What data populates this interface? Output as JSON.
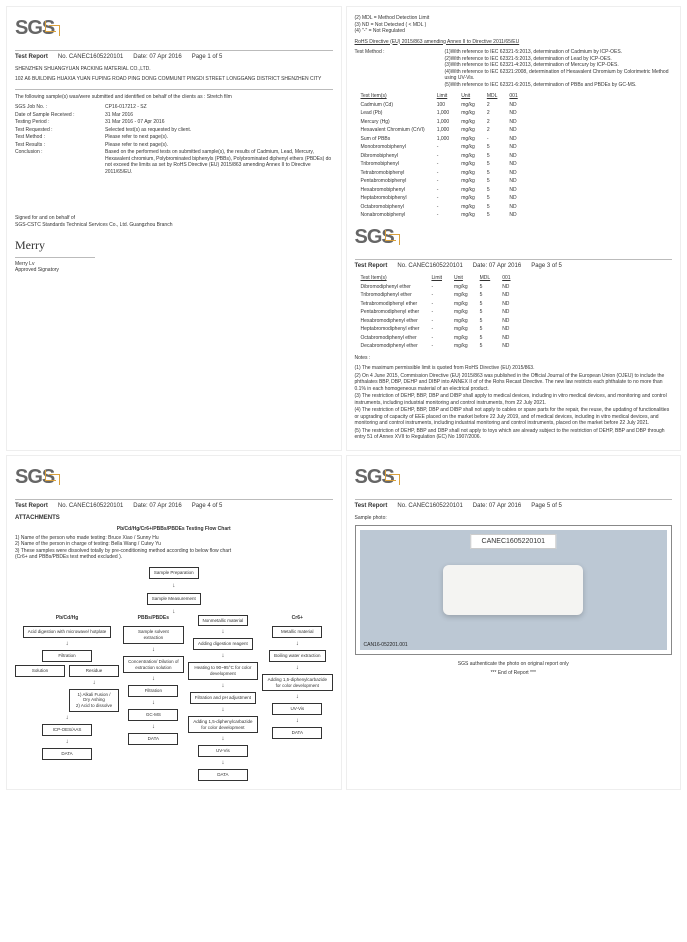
{
  "logo_text": "SGS",
  "report_label": "Test Report",
  "report_no_label": "No.",
  "report_no": "CANEC1605220101",
  "date_label": "Date:",
  "date": "07 Apr 2016",
  "page1": {
    "page_of": "Page 1 of 5",
    "company": "SHENZHEN SHUANGYUAN PACKING MATERIAL CO.,LTD.",
    "address": "102 A6 BUILDING HUAXIA YUAN FUPING ROAD PING DONG COMMUNIT PINGDI STREET LONGGANG DISTRICT SHENZHEN CITY",
    "line1": "The following sample(s) was/were submitted and identified on behalf of the clients as : Stretch film",
    "kv": [
      {
        "k": "SGS Job No. :",
        "v": "CP16-017212 - SZ"
      },
      {
        "k": "Date of Sample Received :",
        "v": "31 Mar 2016"
      },
      {
        "k": "Testing Period :",
        "v": "31 Mar 2016 - 07 Apr 2016"
      },
      {
        "k": "Test Requested :",
        "v": "Selected test(s) as requested by client."
      },
      {
        "k": "Test Method :",
        "v": "Please refer to next page(s)."
      },
      {
        "k": "Test Results :",
        "v": "Please refer to next page(s)."
      },
      {
        "k": "Conclusion :",
        "v": "Based on the performed tests on submitted sample(s), the results of Cadmium, Lead, Mercury, Hexavalent chromium, Polybrominated biphenyls (PBBs), Polybrominated diphenyl ethers (PBDEs) do not exceed  the limits as set by RoHS Directive (EU) 2015/863 amending Annex II to Directive 2011/65/EU."
      }
    ],
    "signed_for": "Signed for and on behalf of",
    "signed_lab": "SGS-CSTC Standards Technical Services Co., Ltd. Guangzhou Branch",
    "sig": "Merry",
    "sig_name": "Merry Lv",
    "sig_role": "Approved Signatory"
  },
  "page2": {
    "page_of": "Page 3 of 5",
    "top_notes": [
      "(2) MDL = Method Detection Limit",
      "(3) ND = Not Detected ( < MDL )",
      "(4) \"-\" = Not Regulated"
    ],
    "directive": "RoHS Directive (EU) 2015/863 amending Annex II to Directive 2011/65/EU",
    "tm_label": "Test Method :",
    "tm": [
      "(1)With reference to IEC 62321-5:2013, determination of Cadmium by ICP-OES.",
      "(2)With reference to IEC 62321-5:2013, determination of Lead by ICP-OES.",
      "(3)With reference to IEC 62321-4:2013, determination of Mercury by ICP-OES.",
      "(4)With reference to IEC 62321:2008, determination of Hexavalent Chromium by Colorimetric Method using UV-Vis.",
      "(5)With reference to IEC 62321-6:2015, determination of PBBs and PBDEs by GC-MS."
    ],
    "table1_headers": [
      "Test Item(s)",
      "Limit",
      "Unit",
      "MDL",
      "001"
    ],
    "table1": [
      [
        "Cadmium (Cd)",
        "100",
        "mg/kg",
        "2",
        "ND"
      ],
      [
        "Lead (Pb)",
        "1,000",
        "mg/kg",
        "2",
        "ND"
      ],
      [
        "Mercury (Hg)",
        "1,000",
        "mg/kg",
        "2",
        "ND"
      ],
      [
        "Hexavalent Chromium (CrVI)",
        "1,000",
        "mg/kg",
        "2",
        "ND"
      ],
      [
        "Sum of PBBs",
        "1,000",
        "mg/kg",
        "-",
        "ND"
      ],
      [
        "Monobromobiphenyl",
        "-",
        "mg/kg",
        "5",
        "ND"
      ],
      [
        "Dibromobiphenyl",
        "-",
        "mg/kg",
        "5",
        "ND"
      ],
      [
        "Tribromobiphenyl",
        "-",
        "mg/kg",
        "5",
        "ND"
      ],
      [
        "Tetrabromobiphenyl",
        "-",
        "mg/kg",
        "5",
        "ND"
      ],
      [
        "Pentabromobiphenyl",
        "-",
        "mg/kg",
        "5",
        "ND"
      ],
      [
        "Hexabromobiphenyl",
        "-",
        "mg/kg",
        "5",
        "ND"
      ],
      [
        "Heptabromobiphenyl",
        "-",
        "mg/kg",
        "5",
        "ND"
      ],
      [
        "Octabromobiphenyl",
        "-",
        "mg/kg",
        "5",
        "ND"
      ],
      [
        "Nonabromobiphenyl",
        "-",
        "mg/kg",
        "5",
        "ND"
      ]
    ],
    "table2_headers": [
      "Test Item(s)",
      "Limit",
      "Unit",
      "MDL",
      "001"
    ],
    "table2": [
      [
        "Dibromodiphenyl ether",
        "-",
        "mg/kg",
        "5",
        "ND"
      ],
      [
        "Tribromodiphenyl ether",
        "-",
        "mg/kg",
        "5",
        "ND"
      ],
      [
        "Tetrabromodiphenyl ether",
        "-",
        "mg/kg",
        "5",
        "ND"
      ],
      [
        "Pentabromodiphenyl ether",
        "-",
        "mg/kg",
        "5",
        "ND"
      ],
      [
        "Hexabromodiphenyl ether",
        "-",
        "mg/kg",
        "5",
        "ND"
      ],
      [
        "Heptabromodiphenyl ether",
        "-",
        "mg/kg",
        "5",
        "ND"
      ],
      [
        "Octabromodiphenyl ether",
        "-",
        "mg/kg",
        "5",
        "ND"
      ],
      [
        "Decabromodiphenyl ether",
        "-",
        "mg/kg",
        "5",
        "ND"
      ]
    ],
    "notes_label": "Notes :",
    "notes": [
      "(1) The maximum permissible limit is quoted from RoHS Directive (EU) 2015/863.",
      "(2) On 4 June  2015, Commission Directive (EU) 2015/863 was published in the Official Journal of the European Union (OJEU) to include the phthalates BBP, DBP, DEHP and DIBP into ANNEX II of of the Rohs Recast Directive. The new law restricts each phthalate to no more than 0.1% in each homogeneous material of an electrical product.",
      "(3) The restriction of DEHP, BBP, DBP and DIBP shall apply to medical devices, including in vitro medical devices, and monitoring and control instruments, including industrial monitoring and control instruments, from 22 July 2021.",
      "(4) The restriction of DEHP, BBP, DBP and DIBP shall not apply to cables or spare parts for the repair, the reuse, the updating of functionalities or upgrading of capacity of EEE placed on the market before 22 July 2019, and of medical devices, including in vitro medical devices, and monitoring and control instruments, including industrial monitoring and control instruments, placed on the market before 22 July 2021.",
      "(5) The restriction of DEHP, BBP and DBP shall not apply to toys which are already subject to the restriction of DEHP, BBP and DBP through entry 51 of Annex XVII to Regulation (EC) No 1907/2006."
    ]
  },
  "page4": {
    "page_of": "Page 4 of 5",
    "attachments": "ATTACHMENTS",
    "fc_title": "Pb/Cd/Hg/Cr6+/PBBs/PBDEs Testing Flow Chart",
    "fc_notes": [
      "1) Name of the person who made testing:  Bruce Xiao / Sunny Hu",
      "2) Name of the person in charge of testing:  Bella Wang / Cutey Yu",
      "3) These samples were dissolved totally by  pre-conditioning method according to below flow chart",
      "    (Cr6+ and PBBs/PBDEs test method excluded )."
    ],
    "boxes": {
      "sp": "Sample Preparation",
      "sm": "Sample Measurement",
      "c1": "Pb/Cd/Hg",
      "c2": "PBBs/PBDEs",
      "c3": "Cr6+",
      "a": "Acid digestion with microwave/ hotplate",
      "f": "Filtration",
      "sol": "Solution",
      "res": "Residue",
      "alk": "1) Alkali Fusion / Dry Ashing\n2) Acid to dissolve",
      "icp": "ICP-OES/AAS",
      "data": "DATA",
      "sse": "Sample solvent extraction",
      "cde": "Concentration/ Dilution of extraction solution",
      "gc": "GC-MS",
      "nm": "Nonmetallic material",
      "adr": "Adding digestion reagent",
      "heat": "Heating to 90~95°C for color development",
      "fph": "Filtration and pH adjustment",
      "adc": "Adding 1,5-diphenylcarbazide for color development",
      "uv": "UV-Vis",
      "mm": "Metallic material",
      "bwe": "Boiling water extraction"
    }
  },
  "page5": {
    "page_of": "Page 5 of 5",
    "sample_photo": "Sample photo:",
    "photo_id": "CANEC1605220101",
    "photo_bottom": "CAN16-052201.001",
    "auth": "SGS authenticate the photo on original report only",
    "endr": "*** End of Report ***"
  }
}
